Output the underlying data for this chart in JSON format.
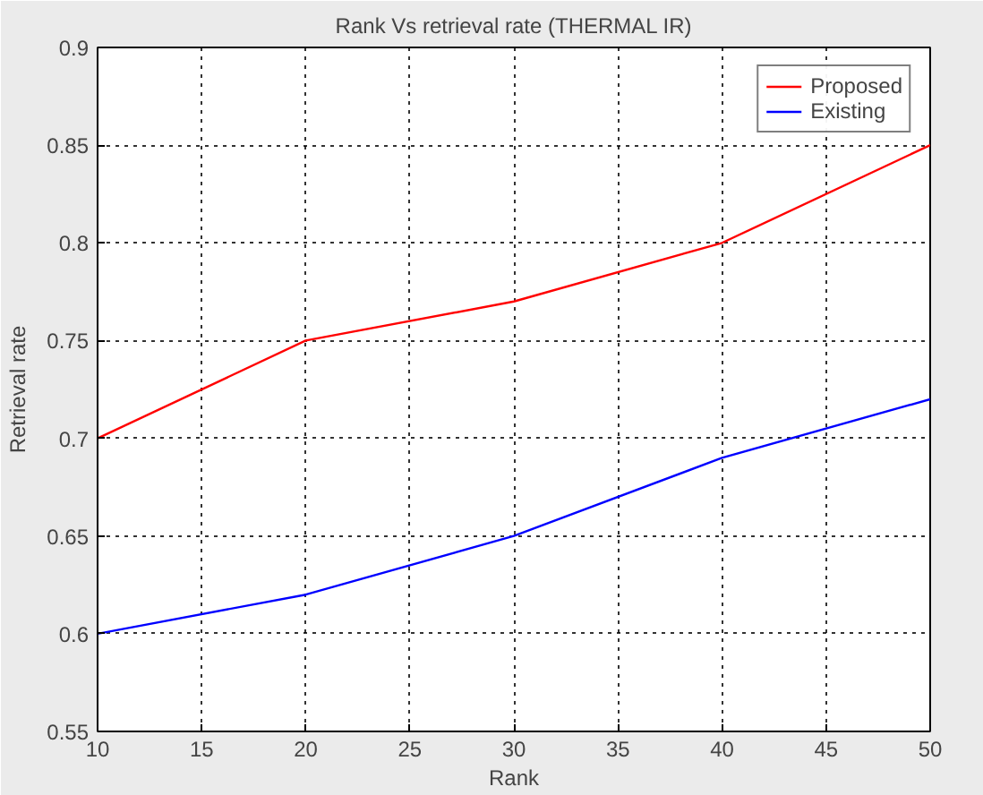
{
  "chart_data": {
    "type": "line",
    "title": "Rank Vs retrieval rate (THERMAL IR)",
    "xlabel": "Rank",
    "ylabel": "Retrieval rate",
    "x": [
      10,
      20,
      30,
      40,
      50
    ],
    "series": [
      {
        "name": "Proposed",
        "color": "#ff0000",
        "values": [
          0.7,
          0.75,
          0.77,
          0.8,
          0.85
        ]
      },
      {
        "name": "Existing",
        "color": "#0000ff",
        "values": [
          0.6,
          0.62,
          0.65,
          0.69,
          0.72
        ]
      }
    ],
    "xlim": [
      10,
      50
    ],
    "xticks": [
      10,
      15,
      20,
      25,
      30,
      35,
      40,
      45,
      50
    ],
    "ylim": [
      0.55,
      0.9
    ],
    "yticks": [
      {
        "value": 0.55,
        "label": "0.55"
      },
      {
        "value": 0.6,
        "label": "0.6"
      },
      {
        "value": 0.65,
        "label": "0.65"
      },
      {
        "value": 0.7,
        "label": "0.7"
      },
      {
        "value": 0.75,
        "label": "0.75"
      },
      {
        "value": 0.8,
        "label": "0.8"
      },
      {
        "value": 0.85,
        "label": "0.85"
      },
      {
        "value": 0.9,
        "label": "0.9"
      }
    ],
    "grid": true,
    "legend": "top right",
    "line_style": "solid"
  }
}
